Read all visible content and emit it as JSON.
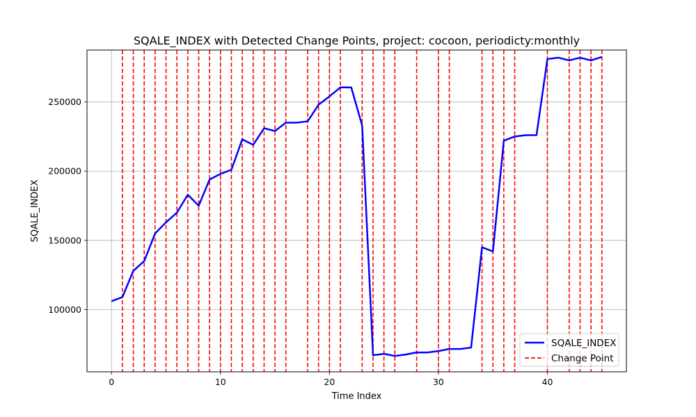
{
  "chart_data": {
    "type": "line",
    "title": "SQALE_INDEX with Detected Change Points, project: cocoon, periodicty:monthly",
    "xlabel": "Time Index",
    "ylabel": "SQALE_INDEX",
    "xlim": [
      -2.25,
      47.25
    ],
    "ylim": [
      55000,
      287500
    ],
    "xticks": [
      0,
      10,
      20,
      30,
      40
    ],
    "yticks": [
      100000,
      150000,
      200000,
      250000
    ],
    "grid": true,
    "legend_position": "lower-right",
    "series": [
      {
        "name": "SQALE_INDEX",
        "color": "#0000ff",
        "x": [
          0,
          1,
          2,
          3,
          4,
          5,
          6,
          7,
          8,
          9,
          10,
          11,
          12,
          13,
          14,
          15,
          16,
          17,
          18,
          19,
          20,
          21,
          22,
          23,
          24,
          25,
          26,
          27,
          28,
          29,
          30,
          31,
          32,
          33,
          34,
          35,
          36,
          37,
          38,
          39,
          40,
          41,
          42,
          43,
          44,
          45
        ],
        "y": [
          106000,
          109000,
          128000,
          135000,
          155000,
          163000,
          170000,
          183000,
          175000,
          194000,
          198000,
          201000,
          223000,
          219000,
          231000,
          229000,
          235000,
          235000,
          236000,
          248000,
          254000,
          260500,
          260500,
          233000,
          67000,
          68000,
          66500,
          67500,
          69000,
          69000,
          70000,
          71500,
          71500,
          72500,
          145000,
          142000,
          222000,
          225000,
          226000,
          226000,
          281000,
          282000,
          280000,
          282000,
          280000,
          282500
        ]
      }
    ],
    "change_points": {
      "name": "Change Point",
      "color": "#ff0000",
      "x": [
        1,
        2,
        3,
        4,
        5,
        6,
        7,
        8,
        9,
        10,
        11,
        12,
        13,
        14,
        15,
        16,
        18,
        19,
        20,
        21,
        23,
        24,
        25,
        26,
        28,
        30,
        31,
        34,
        35,
        36,
        37,
        40,
        42,
        43,
        44,
        45
      ]
    }
  }
}
